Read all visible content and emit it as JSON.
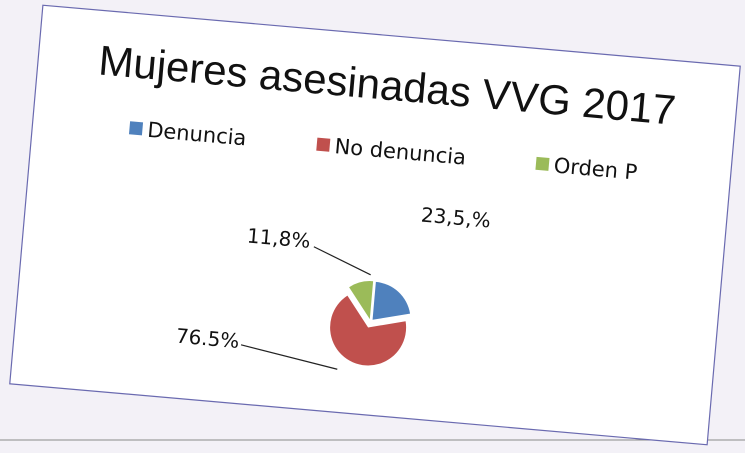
{
  "chart_data": {
    "type": "pie",
    "title": "Mujeres asesinadas VVG 2017",
    "categories": [
      "Denuncia",
      "No denuncia",
      "Orden P"
    ],
    "values": [
      23.5,
      76.5,
      11.8
    ],
    "value_labels": [
      "23,5,%",
      "76.5%",
      "11,8%"
    ],
    "colors": [
      "#4f81bd",
      "#c0504d",
      "#9bbb59"
    ],
    "legend": "top"
  }
}
